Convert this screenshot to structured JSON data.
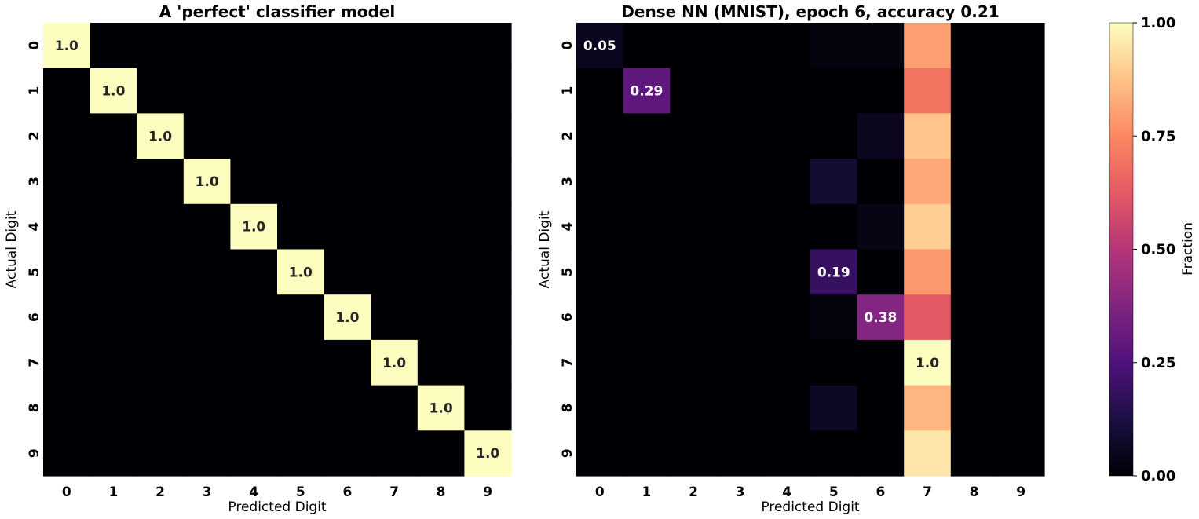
{
  "chart_data": [
    {
      "type": "heatmap",
      "title": "A 'perfect' classifier model",
      "xlabel": "Predicted Digit",
      "ylabel": "Actual Digit",
      "x_categories": [
        "0",
        "1",
        "2",
        "3",
        "4",
        "5",
        "6",
        "7",
        "8",
        "9"
      ],
      "y_categories": [
        "0",
        "1",
        "2",
        "3",
        "4",
        "5",
        "6",
        "7",
        "8",
        "9"
      ],
      "values": [
        [
          1,
          0,
          0,
          0,
          0,
          0,
          0,
          0,
          0,
          0
        ],
        [
          0,
          1,
          0,
          0,
          0,
          0,
          0,
          0,
          0,
          0
        ],
        [
          0,
          0,
          1,
          0,
          0,
          0,
          0,
          0,
          0,
          0
        ],
        [
          0,
          0,
          0,
          1,
          0,
          0,
          0,
          0,
          0,
          0
        ],
        [
          0,
          0,
          0,
          0,
          1,
          0,
          0,
          0,
          0,
          0
        ],
        [
          0,
          0,
          0,
          0,
          0,
          1,
          0,
          0,
          0,
          0
        ],
        [
          0,
          0,
          0,
          0,
          0,
          0,
          1,
          0,
          0,
          0
        ],
        [
          0,
          0,
          0,
          0,
          0,
          0,
          0,
          1,
          0,
          0
        ],
        [
          0,
          0,
          0,
          0,
          0,
          0,
          0,
          0,
          1,
          0
        ],
        [
          0,
          0,
          0,
          0,
          0,
          0,
          0,
          0,
          0,
          1
        ]
      ],
      "annotations": [
        {
          "row": 0,
          "col": 0,
          "text": "1.0"
        },
        {
          "row": 1,
          "col": 1,
          "text": "1.0"
        },
        {
          "row": 2,
          "col": 2,
          "text": "1.0"
        },
        {
          "row": 3,
          "col": 3,
          "text": "1.0"
        },
        {
          "row": 4,
          "col": 4,
          "text": "1.0"
        },
        {
          "row": 5,
          "col": 5,
          "text": "1.0"
        },
        {
          "row": 6,
          "col": 6,
          "text": "1.0"
        },
        {
          "row": 7,
          "col": 7,
          "text": "1.0"
        },
        {
          "row": 8,
          "col": 8,
          "text": "1.0"
        },
        {
          "row": 9,
          "col": 9,
          "text": "1.0"
        }
      ]
    },
    {
      "type": "heatmap",
      "title": "Dense NN (MNIST), epoch 6, accuracy 0.21",
      "xlabel": "Predicted Digit",
      "ylabel": "Actual Digit",
      "x_categories": [
        "0",
        "1",
        "2",
        "3",
        "4",
        "5",
        "6",
        "7",
        "8",
        "9"
      ],
      "y_categories": [
        "0",
        "1",
        "2",
        "3",
        "4",
        "5",
        "6",
        "7",
        "8",
        "9"
      ],
      "values": [
        [
          0.05,
          0,
          0,
          0,
          0,
          0.02,
          0.02,
          0.8,
          0,
          0
        ],
        [
          0,
          0.29,
          0,
          0,
          0,
          0,
          0,
          0.7,
          0,
          0
        ],
        [
          0,
          0,
          0,
          0,
          0,
          0,
          0.05,
          0.88,
          0,
          0
        ],
        [
          0,
          0,
          0,
          0,
          0,
          0.09,
          0,
          0.82,
          0,
          0
        ],
        [
          0,
          0,
          0,
          0,
          0,
          0,
          0.03,
          0.9,
          0,
          0
        ],
        [
          0,
          0,
          0,
          0,
          0,
          0.19,
          0,
          0.79,
          0,
          0
        ],
        [
          0,
          0,
          0,
          0,
          0,
          0.02,
          0.38,
          0.62,
          0,
          0
        ],
        [
          0,
          0,
          0,
          0,
          0,
          0,
          0,
          1.0,
          0,
          0
        ],
        [
          0,
          0,
          0,
          0,
          0,
          0.06,
          0,
          0.85,
          0,
          0
        ],
        [
          0,
          0,
          0,
          0,
          0,
          0,
          0,
          0.95,
          0,
          0
        ]
      ],
      "annotations": [
        {
          "row": 0,
          "col": 0,
          "text": "0.05"
        },
        {
          "row": 1,
          "col": 1,
          "text": "0.29"
        },
        {
          "row": 5,
          "col": 5,
          "text": "0.19"
        },
        {
          "row": 6,
          "col": 6,
          "text": "0.38"
        },
        {
          "row": 7,
          "col": 7,
          "text": "1.0"
        }
      ]
    }
  ],
  "colorbar": {
    "colormap": "magma",
    "label": "Fraction",
    "range": [
      0,
      1
    ],
    "ticks": [
      {
        "value": 0,
        "label": "0.00"
      },
      {
        "value": 0.25,
        "label": "0.25"
      },
      {
        "value": 0.5,
        "label": "0.50"
      },
      {
        "value": 0.75,
        "label": "0.75"
      },
      {
        "value": 1,
        "label": "1.00"
      }
    ]
  }
}
